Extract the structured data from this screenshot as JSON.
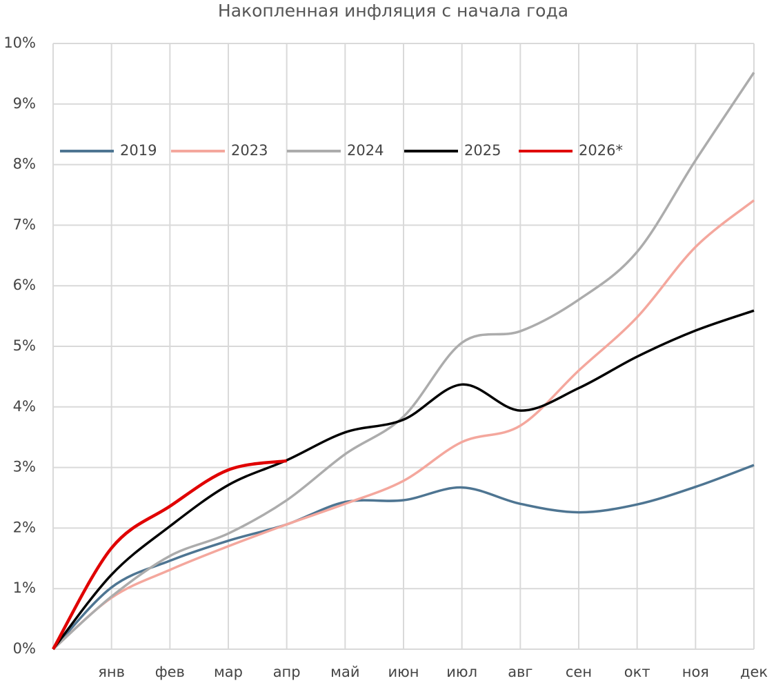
{
  "chart_data": {
    "type": "line",
    "title": "Накопленная инфляция с начала года",
    "categories": [
      null,
      "янв",
      "фев",
      "мар",
      "апр",
      "май",
      "июн",
      "июл",
      "авг",
      "сен",
      "окт",
      "ноя",
      "дек"
    ],
    "series": [
      {
        "name": "2019",
        "color": "#4e7592",
        "values": [
          0,
          1.02,
          1.46,
          1.79,
          2.06,
          2.43,
          2.46,
          2.67,
          2.4,
          2.26,
          2.39,
          2.68,
          3.04
        ]
      },
      {
        "name": "2023",
        "color": "#f4a79d",
        "values": [
          0,
          0.85,
          1.31,
          1.7,
          2.06,
          2.4,
          2.78,
          3.42,
          3.69,
          4.6,
          5.48,
          6.64,
          7.41
        ]
      },
      {
        "name": "2024",
        "color": "#acacac",
        "values": [
          0,
          0.87,
          1.54,
          1.91,
          2.46,
          3.22,
          3.84,
          5.06,
          5.25,
          5.77,
          6.56,
          8.07,
          9.52
        ]
      },
      {
        "name": "2025",
        "color": "#000000",
        "values": [
          0,
          1.23,
          2.03,
          2.71,
          3.12,
          3.58,
          3.79,
          4.37,
          3.94,
          4.31,
          4.83,
          5.26,
          5.59
        ]
      },
      {
        "name": "2026*",
        "color": "#e00000",
        "values": [
          0,
          1.67,
          2.36,
          2.96,
          3.11,
          null,
          null,
          null,
          null,
          null,
          null,
          null,
          null
        ]
      }
    ],
    "ylim": [
      0,
      10
    ],
    "yticks": [
      {
        "value": 0,
        "label": "0%"
      },
      {
        "value": 1,
        "label": "1%"
      },
      {
        "value": 2,
        "label": "2%"
      },
      {
        "value": 3,
        "label": "3%"
      },
      {
        "value": 4,
        "label": "4%"
      },
      {
        "value": 5,
        "label": "5%"
      },
      {
        "value": 6,
        "label": "6%"
      },
      {
        "value": 7,
        "label": "7%"
      },
      {
        "value": 8,
        "label": "8%"
      },
      {
        "value": 9,
        "label": "9%"
      },
      {
        "value": 10,
        "label": "10%"
      }
    ],
    "grid": true,
    "legend": "top-left"
  }
}
